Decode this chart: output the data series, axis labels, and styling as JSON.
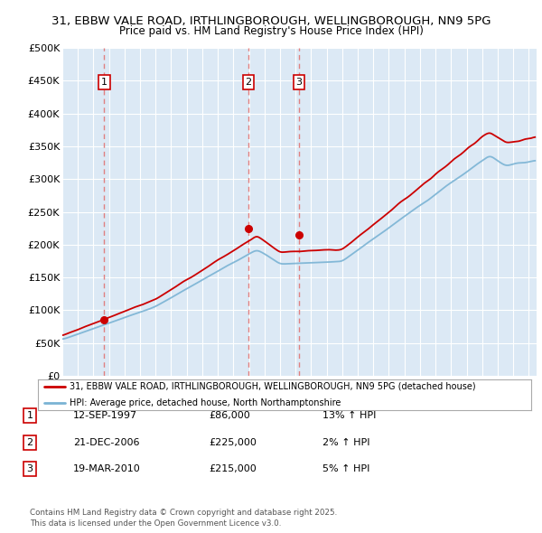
{
  "title_line1": "31, EBBW VALE ROAD, IRTHLINGBOROUGH, WELLINGBOROUGH, NN9 5PG",
  "title_line2": "Price paid vs. HM Land Registry's House Price Index (HPI)",
  "bg_color": "#dce9f5",
  "fig_bg_color": "#ffffff",
  "red_line_label": "31, EBBW VALE ROAD, IRTHLINGBOROUGH, WELLINGBOROUGH, NN9 5PG (detached house)",
  "blue_line_label": "HPI: Average price, detached house, North Northamptonshire",
  "sale_years": [
    1997.7,
    2006.97,
    2010.22
  ],
  "sale_prices": [
    86000,
    225000,
    215000
  ],
  "table_rows": [
    {
      "num": "1",
      "date": "12-SEP-1997",
      "price": "£86,000",
      "hpi": "13% ↑ HPI"
    },
    {
      "num": "2",
      "date": "21-DEC-2006",
      "price": "£225,000",
      "hpi": "2% ↑ HPI"
    },
    {
      "num": "3",
      "date": "19-MAR-2010",
      "price": "£215,000",
      "hpi": "5% ↑ HPI"
    }
  ],
  "footer": "Contains HM Land Registry data © Crown copyright and database right 2025.\nThis data is licensed under the Open Government Licence v3.0.",
  "ylim": [
    0,
    500000
  ],
  "yticks": [
    0,
    50000,
    100000,
    150000,
    200000,
    250000,
    300000,
    350000,
    400000,
    450000,
    500000
  ],
  "ytick_labels": [
    "£0",
    "£50K",
    "£100K",
    "£150K",
    "£200K",
    "£250K",
    "£300K",
    "£350K",
    "£400K",
    "£450K",
    "£500K"
  ],
  "xmin": 1995.0,
  "xmax": 2025.5,
  "red_color": "#cc0000",
  "blue_color": "#7ab3d4",
  "grid_color": "#ffffff",
  "dashed_color": "#e08080"
}
